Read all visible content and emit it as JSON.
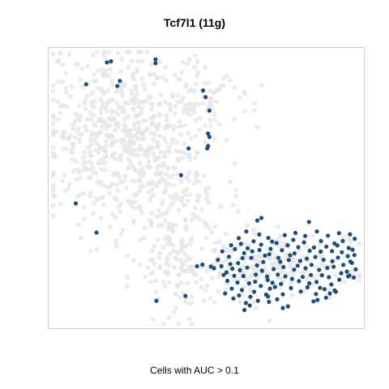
{
  "chart_data": {
    "type": "scatter",
    "title": "Tcf7l1 (11g)",
    "xlabel": "Cells with AUC > 0.1",
    "ylabel": "",
    "xlim": [
      0,
      100
    ],
    "ylim": [
      0,
      100
    ],
    "axes_ticks": false,
    "grid": false,
    "colors": {
      "background_cells": "#e6e6e6",
      "highlighted_cells": "#1f4e7a",
      "frame": "#cccccc"
    },
    "seed": 7,
    "background_clusters": [
      {
        "cx": 22,
        "cy": 70,
        "sx": 12,
        "sy": 15,
        "n": 520
      },
      {
        "cx": 38,
        "cy": 47,
        "sx": 9,
        "sy": 14,
        "n": 200
      },
      {
        "cx": 42,
        "cy": 19,
        "sx": 6,
        "sy": 9,
        "n": 90
      },
      {
        "cx": 72,
        "cy": 22,
        "sx": 13,
        "sy": 6,
        "n": 200
      },
      {
        "cx": 48,
        "cy": 83,
        "sx": 8,
        "sy": 7,
        "n": 70
      }
    ],
    "highlighted_cells": [
      [
        18.5,
        94.8
      ],
      [
        19.8,
        95.2
      ],
      [
        33.9,
        95.9
      ],
      [
        33.9,
        94.5
      ],
      [
        11.9,
        87.0
      ],
      [
        21.8,
        86.4
      ],
      [
        22.6,
        88.2
      ],
      [
        49.0,
        84.8
      ],
      [
        49.8,
        82.4
      ],
      [
        51.0,
        77.6
      ],
      [
        50.6,
        69.4
      ],
      [
        51.0,
        68.2
      ],
      [
        50.3,
        64.1
      ],
      [
        50.6,
        65.0
      ],
      [
        44.4,
        64.1
      ],
      [
        42.0,
        54.6
      ],
      [
        8.6,
        44.5
      ],
      [
        15.2,
        34.1
      ],
      [
        34.2,
        9.8
      ],
      [
        43.4,
        11.5
      ],
      [
        66.2,
        38.4
      ],
      [
        67.5,
        39.3
      ],
      [
        82.6,
        37.9
      ],
      [
        69.7,
        32.2
      ],
      [
        86.4,
        31.1
      ],
      [
        90.7,
        30.2
      ],
      [
        93.3,
        31.1
      ],
      [
        95.2,
        28.6
      ],
      [
        96.4,
        28.0
      ],
      [
        97.0,
        26.1
      ],
      [
        95.7,
        23.8
      ],
      [
        95.4,
        18.8
      ],
      [
        95.0,
        18.5
      ],
      [
        90.7,
        13.5
      ],
      [
        91.1,
        13.0
      ],
      [
        84.0,
        9.6
      ],
      [
        75.9,
        7.8
      ],
      [
        74.3,
        7.2
      ],
      [
        69.0,
        12.0
      ],
      [
        69.6,
        11.3
      ],
      [
        47.1,
        22.1
      ],
      [
        48.8,
        22.7
      ],
      [
        63.8,
        8.1
      ],
      [
        62.1,
        6.5
      ],
      [
        53.7,
        24.4
      ],
      [
        54.8,
        22.1
      ],
      [
        56.4,
        19.9
      ],
      [
        58.3,
        21.2
      ],
      [
        60.1,
        23.2
      ],
      [
        62.0,
        26.8
      ],
      [
        64.3,
        25.1
      ],
      [
        66.1,
        22.4
      ],
      [
        67.7,
        20.5
      ],
      [
        69.3,
        18.4
      ],
      [
        71.0,
        16.2
      ],
      [
        72.7,
        19.1
      ],
      [
        74.5,
        21.8
      ],
      [
        76.2,
        24.3
      ],
      [
        78.0,
        26.7
      ],
      [
        79.8,
        24.0
      ],
      [
        81.5,
        21.4
      ],
      [
        83.2,
        19.0
      ],
      [
        85.0,
        16.5
      ],
      [
        86.7,
        18.9
      ],
      [
        88.4,
        21.5
      ],
      [
        90.0,
        23.9
      ],
      [
        91.8,
        25.2
      ],
      [
        93.5,
        22.6
      ],
      [
        94.6,
        20.2
      ],
      [
        92.2,
        17.3
      ],
      [
        89.7,
        15.6
      ],
      [
        87.5,
        13.9
      ],
      [
        84.8,
        12.2
      ],
      [
        82.1,
        14.6
      ],
      [
        79.4,
        16.8
      ],
      [
        76.9,
        14.3
      ],
      [
        74.3,
        12.1
      ],
      [
        71.8,
        14.7
      ],
      [
        69.5,
        17.2
      ],
      [
        67.3,
        15.1
      ],
      [
        65.2,
        13.0
      ],
      [
        63.6,
        16.0
      ],
      [
        61.8,
        18.6
      ],
      [
        59.9,
        16.3
      ],
      [
        58.1,
        14.1
      ],
      [
        56.7,
        16.9
      ],
      [
        55.5,
        19.0
      ],
      [
        57.2,
        25.5
      ],
      [
        59.1,
        28.2
      ],
      [
        61.0,
        30.1
      ],
      [
        63.1,
        28.5
      ],
      [
        65.0,
        31.0
      ],
      [
        66.9,
        27.9
      ],
      [
        68.6,
        25.9
      ],
      [
        70.4,
        28.3
      ],
      [
        72.3,
        30.4
      ],
      [
        74.0,
        27.8
      ],
      [
        75.8,
        29.6
      ],
      [
        77.6,
        31.5
      ],
      [
        79.2,
        28.9
      ],
      [
        81.0,
        30.6
      ],
      [
        82.8,
        27.6
      ],
      [
        84.6,
        25.4
      ],
      [
        86.3,
        27.3
      ],
      [
        88.1,
        29.1
      ],
      [
        89.9,
        27.5
      ],
      [
        91.6,
        29.5
      ],
      [
        93.0,
        27.1
      ],
      [
        94.9,
        25.7
      ],
      [
        96.2,
        23.3
      ],
      [
        97.4,
        21.0
      ],
      [
        96.8,
        18.1
      ],
      [
        73.5,
        23.7
      ],
      [
        75.1,
        18.5
      ],
      [
        77.9,
        20.9
      ],
      [
        80.6,
        18.3
      ],
      [
        83.4,
        22.6
      ],
      [
        85.8,
        20.8
      ],
      [
        88.9,
        18.2
      ],
      [
        71.4,
        21.1
      ],
      [
        68.1,
        23.6
      ],
      [
        65.7,
        19.1
      ],
      [
        63.0,
        21.6
      ],
      [
        60.7,
        20.7
      ],
      [
        58.9,
        18.7
      ],
      [
        57.6,
        22.9
      ],
      [
        61.5,
        25.0
      ],
      [
        64.6,
        27.4
      ],
      [
        67.4,
        29.8
      ],
      [
        70.0,
        26.4
      ],
      [
        72.9,
        25.1
      ],
      [
        76.6,
        26.0
      ],
      [
        79.0,
        22.3
      ],
      [
        81.9,
        24.8
      ],
      [
        84.2,
        28.8
      ],
      [
        87.2,
        24.4
      ],
      [
        90.4,
        21.9
      ],
      [
        92.8,
        19.6
      ],
      [
        66.8,
        33.4
      ],
      [
        70.9,
        30.9
      ],
      [
        74.9,
        33.2
      ],
      [
        78.3,
        34.0
      ],
      [
        81.4,
        32.9
      ],
      [
        85.1,
        34.5
      ],
      [
        88.6,
        33.0
      ],
      [
        92.1,
        33.9
      ],
      [
        95.6,
        33.5
      ],
      [
        97.1,
        31.9
      ],
      [
        55.1,
        27.4
      ],
      [
        57.9,
        29.6
      ],
      [
        60.3,
        32.1
      ],
      [
        62.7,
        34.5
      ],
      [
        64.0,
        11.2
      ],
      [
        66.4,
        9.8
      ],
      [
        69.9,
        9.4
      ],
      [
        72.5,
        10.3
      ],
      [
        56.0,
        12.4
      ],
      [
        58.6,
        10.6
      ],
      [
        61.3,
        13.6
      ],
      [
        65.5,
        16.6
      ],
      [
        70.2,
        14.1
      ],
      [
        73.7,
        15.8
      ],
      [
        77.2,
        17.6
      ],
      [
        80.0,
        13.1
      ],
      [
        82.7,
        16.0
      ],
      [
        86.1,
        14.4
      ],
      [
        89.2,
        12.4
      ],
      [
        88.0,
        10.9
      ],
      [
        85.3,
        10.1
      ],
      [
        62.6,
        9.0
      ],
      [
        60.4,
        11.7
      ],
      [
        52.5,
        21.4
      ],
      [
        51.5,
        22.0
      ]
    ]
  }
}
